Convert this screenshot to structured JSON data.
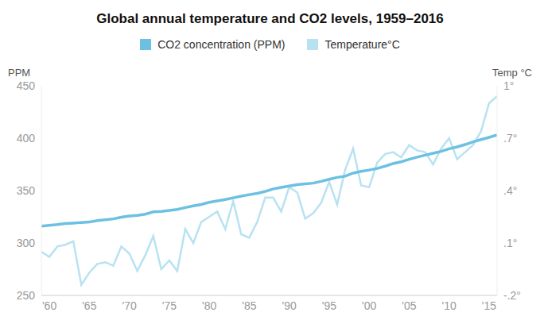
{
  "chart_data": {
    "type": "line",
    "title": "Global annual temperature and CO2 levels, 1959–2016",
    "y_label": "PPM",
    "y2_label": "Temp °C",
    "legend": "top",
    "grid": false,
    "x": [
      1959,
      1960,
      1961,
      1962,
      1963,
      1964,
      1965,
      1966,
      1967,
      1968,
      1969,
      1970,
      1971,
      1972,
      1973,
      1974,
      1975,
      1976,
      1977,
      1978,
      1979,
      1980,
      1981,
      1982,
      1983,
      1984,
      1985,
      1986,
      1987,
      1988,
      1989,
      1990,
      1991,
      1992,
      1993,
      1994,
      1995,
      1996,
      1997,
      1998,
      1999,
      2000,
      2001,
      2002,
      2003,
      2004,
      2005,
      2006,
      2007,
      2008,
      2009,
      2010,
      2011,
      2012,
      2013,
      2014,
      2015,
      2016
    ],
    "xlim": [
      1959,
      2016
    ],
    "xticks": [
      {
        "value": 1960,
        "label": "'60"
      },
      {
        "value": 1965,
        "label": "'65"
      },
      {
        "value": 1970,
        "label": "'70"
      },
      {
        "value": 1975,
        "label": "'75"
      },
      {
        "value": 1980,
        "label": "'80"
      },
      {
        "value": 1985,
        "label": "'85"
      },
      {
        "value": 1990,
        "label": "'90"
      },
      {
        "value": 1995,
        "label": "'95"
      },
      {
        "value": 2000,
        "label": "'00"
      },
      {
        "value": 2005,
        "label": "'05"
      },
      {
        "value": 2010,
        "label": "'10"
      },
      {
        "value": 2015,
        "label": "'15"
      }
    ],
    "ylim": [
      250,
      450
    ],
    "yticks": [
      250,
      300,
      350,
      400,
      450
    ],
    "y2lim": [
      -0.2,
      1
    ],
    "y2ticks": [
      {
        "value": -0.2,
        "label": "-.2°"
      },
      {
        "value": 0.1,
        "label": ".1°"
      },
      {
        "value": 0.4,
        "label": ".4°"
      },
      {
        "value": 0.7,
        "label": ".7°"
      },
      {
        "value": 1,
        "label": "1°"
      }
    ],
    "series": [
      {
        "name": "CO2 concentration (PPM)",
        "color": "#6cc0e2",
        "values": [
          316.0,
          316.9,
          317.6,
          318.5,
          319.0,
          319.6,
          320.0,
          321.4,
          322.2,
          323.0,
          324.6,
          325.7,
          326.3,
          327.5,
          329.7,
          330.2,
          331.1,
          332.0,
          333.8,
          335.4,
          336.8,
          338.8,
          340.1,
          341.5,
          343.1,
          344.7,
          346.1,
          347.4,
          349.2,
          351.6,
          353.1,
          354.4,
          355.6,
          356.5,
          357.1,
          358.8,
          360.8,
          362.6,
          363.7,
          366.7,
          368.4,
          369.6,
          371.1,
          373.3,
          375.8,
          377.5,
          379.8,
          381.9,
          383.8,
          385.6,
          387.4,
          389.9,
          391.7,
          393.9,
          396.5,
          398.7,
          400.8,
          403.0
        ]
      },
      {
        "name": "Temperature°C",
        "color": "#b8e2f2",
        "axis": "y2",
        "values": [
          0.05,
          0.02,
          0.08,
          0.09,
          0.11,
          -0.14,
          -0.07,
          -0.02,
          -0.01,
          -0.03,
          0.08,
          0.04,
          -0.06,
          0.03,
          0.14,
          -0.05,
          0.0,
          -0.06,
          0.18,
          0.1,
          0.22,
          0.25,
          0.28,
          0.18,
          0.34,
          0.15,
          0.13,
          0.22,
          0.36,
          0.36,
          0.28,
          0.42,
          0.39,
          0.24,
          0.27,
          0.33,
          0.45,
          0.32,
          0.52,
          0.64,
          0.43,
          0.42,
          0.56,
          0.61,
          0.62,
          0.59,
          0.66,
          0.63,
          0.62,
          0.55,
          0.64,
          0.7,
          0.58,
          0.62,
          0.66,
          0.74,
          0.9,
          0.94
        ]
      }
    ]
  }
}
